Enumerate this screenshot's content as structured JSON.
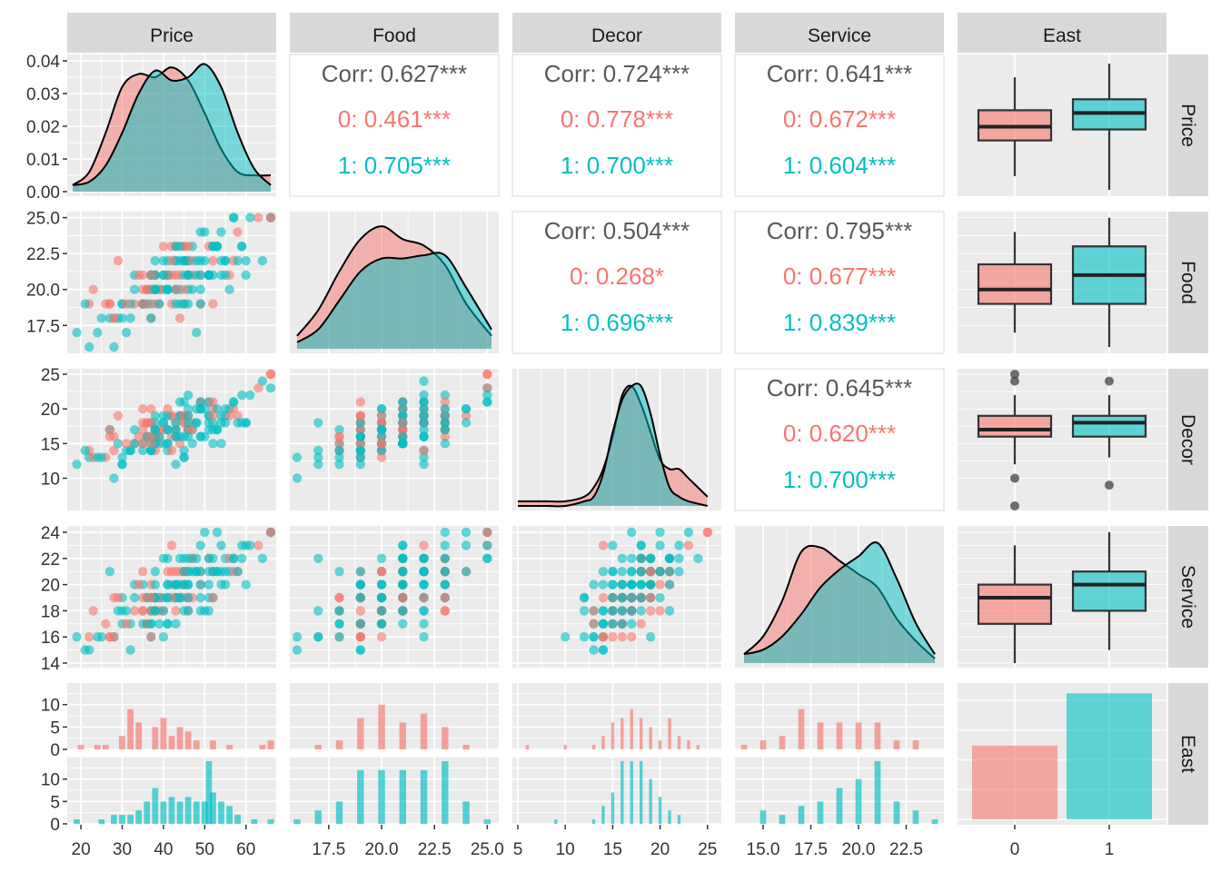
{
  "chart_data": {
    "type": "scatter",
    "variables": [
      "Price",
      "Food",
      "Decor",
      "Service",
      "East"
    ],
    "colors": {
      "0": "#F8766D",
      "1": "#00BFC4",
      "all": "#595959"
    },
    "axis_ticks": {
      "Price_x": [
        "20",
        "30",
        "40",
        "50",
        "60"
      ],
      "Price_y": [
        "0.00",
        "0.01",
        "0.02",
        "0.03",
        "0.04"
      ],
      "Food": [
        "17.5",
        "20.0",
        "22.5",
        "25.0"
      ],
      "Decor_y": [
        "10",
        "15",
        "20",
        "25"
      ],
      "Decor_x": [
        "5",
        "10",
        "15",
        "20",
        "25"
      ],
      "Service_y": [
        "14",
        "16",
        "18",
        "20",
        "22",
        "24"
      ],
      "Service_x": [
        "15.0",
        "17.5",
        "20.0",
        "22.5"
      ],
      "East_counts": [
        "0",
        "5",
        "10"
      ],
      "East_x": [
        "0",
        "1"
      ]
    },
    "correlations": [
      {
        "pair": "Price-Food",
        "total": "Corr: 0.627***",
        "group0": "0: 0.461***",
        "group1": "1: 0.705***"
      },
      {
        "pair": "Price-Decor",
        "total": "Corr: 0.724***",
        "group0": "0: 0.778***",
        "group1": "1: 0.700***"
      },
      {
        "pair": "Price-Service",
        "total": "Corr: 0.641***",
        "group0": "0: 0.672***",
        "group1": "1: 0.604***"
      },
      {
        "pair": "Food-Decor",
        "total": "Corr: 0.504***",
        "group0": "0: 0.268*",
        "group1": "1: 0.696***"
      },
      {
        "pair": "Food-Service",
        "total": "Corr: 0.795***",
        "group0": "0: 0.677***",
        "group1": "1: 0.839***"
      },
      {
        "pair": "Decor-Service",
        "total": "Corr: 0.645***",
        "group0": "0: 0.620***",
        "group1": "1: 0.700***"
      }
    ],
    "east_counts": {
      "0": 62,
      "1": 106
    },
    "boxplots": {
      "Price": {
        "0": [
          24,
          37,
          42,
          48,
          60
        ],
        "1": [
          19,
          41,
          47,
          52,
          65
        ]
      },
      "Food": {
        "0": [
          17,
          19,
          20,
          21.75,
          24
        ],
        "1": [
          16,
          19,
          21,
          23,
          25
        ]
      },
      "Decor": {
        "0": [
          12,
          16,
          17,
          19,
          22
        ],
        "1": [
          13,
          16,
          18,
          19,
          22
        ]
      },
      "Service": {
        "0": [
          14,
          17,
          19,
          20,
          23
        ],
        "1": [
          15,
          18,
          20,
          21,
          24
        ]
      }
    },
    "box_outliers": {
      "Decor": {
        "0": [
          6,
          10,
          24,
          25
        ],
        "1": [
          9,
          24
        ]
      }
    },
    "price_density": {
      "x": [
        18,
        22,
        26,
        30,
        34,
        38,
        42,
        46,
        50,
        54,
        58,
        62,
        66
      ],
      "0": [
        0.002,
        0.006,
        0.018,
        0.032,
        0.036,
        0.035,
        0.038,
        0.034,
        0.024,
        0.013,
        0.006,
        0.005,
        0.005
      ],
      "1": [
        0.002,
        0.003,
        0.008,
        0.018,
        0.03,
        0.037,
        0.034,
        0.035,
        0.039,
        0.032,
        0.018,
        0.007,
        0.002
      ]
    },
    "food_density": {
      "x": [
        16,
        17,
        18,
        19,
        20,
        21,
        22,
        23,
        24,
        25.2
      ],
      "0": [
        0.04,
        0.12,
        0.24,
        0.34,
        0.38,
        0.34,
        0.32,
        0.26,
        0.14,
        0.04
      ],
      "1": [
        0.02,
        0.06,
        0.15,
        0.24,
        0.28,
        0.28,
        0.29,
        0.29,
        0.19,
        0.06
      ]
    },
    "decor_density": {
      "x": [
        5,
        8,
        10,
        12,
        13,
        14,
        15,
        16,
        17,
        18,
        19,
        20,
        21,
        22,
        23,
        25
      ],
      "0": [
        0.01,
        0.01,
        0.01,
        0.02,
        0.04,
        0.08,
        0.15,
        0.24,
        0.26,
        0.22,
        0.16,
        0.1,
        0.08,
        0.08,
        0.06,
        0.02
      ],
      "1": [
        0.0,
        0.0,
        0.0,
        0.01,
        0.02,
        0.07,
        0.16,
        0.23,
        0.26,
        0.26,
        0.2,
        0.11,
        0.04,
        0.02,
        0.01,
        0.0
      ]
    },
    "service_density": {
      "x": [
        14,
        15,
        16,
        17,
        18,
        19,
        20,
        21,
        22,
        23,
        24
      ],
      "0": [
        0.02,
        0.06,
        0.14,
        0.25,
        0.26,
        0.23,
        0.2,
        0.17,
        0.1,
        0.05,
        0.01
      ],
      "1": [
        0.02,
        0.03,
        0.06,
        0.11,
        0.17,
        0.21,
        0.24,
        0.27,
        0.19,
        0.09,
        0.02
      ]
    },
    "histograms": {
      "Price": {
        "0": [
          [
            20,
            1
          ],
          [
            24,
            1
          ],
          [
            26,
            1
          ],
          [
            30,
            3
          ],
          [
            32,
            9
          ],
          [
            34,
            6
          ],
          [
            38,
            5
          ],
          [
            40,
            7
          ],
          [
            42,
            3
          ],
          [
            44,
            5
          ],
          [
            46,
            4
          ],
          [
            48,
            2
          ],
          [
            52,
            2
          ],
          [
            56,
            1
          ],
          [
            64,
            1
          ],
          [
            66,
            2
          ]
        ],
        "1": [
          [
            19,
            1
          ],
          [
            25,
            1
          ],
          [
            28,
            2
          ],
          [
            30,
            2
          ],
          [
            32,
            2
          ],
          [
            34,
            3
          ],
          [
            36,
            5
          ],
          [
            38,
            8
          ],
          [
            40,
            5
          ],
          [
            42,
            6
          ],
          [
            44,
            5
          ],
          [
            46,
            6
          ],
          [
            48,
            5
          ],
          [
            50,
            5
          ],
          [
            51,
            14
          ],
          [
            52,
            7
          ],
          [
            54,
            5
          ],
          [
            56,
            4
          ],
          [
            58,
            2
          ],
          [
            62,
            1
          ],
          [
            66,
            1
          ]
        ]
      },
      "Food": {
        "0": [
          [
            17,
            1
          ],
          [
            18,
            2
          ],
          [
            19,
            7
          ],
          [
            20,
            10
          ],
          [
            21,
            6
          ],
          [
            22,
            8
          ],
          [
            23,
            5
          ],
          [
            24,
            1
          ]
        ],
        "1": [
          [
            16,
            1
          ],
          [
            17,
            3
          ],
          [
            18,
            5
          ],
          [
            19,
            12
          ],
          [
            20,
            12
          ],
          [
            21,
            12
          ],
          [
            22,
            12
          ],
          [
            23,
            14
          ],
          [
            24,
            5
          ],
          [
            25,
            1
          ]
        ]
      },
      "Decor": {
        "0": [
          [
            6,
            1
          ],
          [
            10,
            1
          ],
          [
            13,
            1
          ],
          [
            14,
            3
          ],
          [
            15,
            6
          ],
          [
            16,
            7
          ],
          [
            17,
            9
          ],
          [
            18,
            7
          ],
          [
            19,
            5
          ],
          [
            20,
            2
          ],
          [
            21,
            7
          ],
          [
            22,
            3
          ],
          [
            23,
            2
          ],
          [
            24,
            1
          ]
        ],
        "1": [
          [
            9,
            1
          ],
          [
            13,
            1
          ],
          [
            14,
            4
          ],
          [
            15,
            7
          ],
          [
            16,
            14
          ],
          [
            17,
            14
          ],
          [
            18,
            14
          ],
          [
            19,
            10
          ],
          [
            20,
            6
          ],
          [
            21,
            3
          ],
          [
            22,
            2
          ]
        ]
      },
      "Service": {
        "0": [
          [
            14,
            1
          ],
          [
            15,
            2
          ],
          [
            16,
            3
          ],
          [
            17,
            9
          ],
          [
            18,
            6
          ],
          [
            19,
            6
          ],
          [
            20,
            6
          ],
          [
            21,
            6
          ],
          [
            22,
            2
          ],
          [
            23,
            2
          ]
        ],
        "1": [
          [
            15,
            3
          ],
          [
            16,
            2
          ],
          [
            17,
            4
          ],
          [
            18,
            5
          ],
          [
            19,
            8
          ],
          [
            20,
            10
          ],
          [
            21,
            14
          ],
          [
            22,
            5
          ],
          [
            23,
            3
          ],
          [
            24,
            1
          ]
        ]
      }
    }
  }
}
